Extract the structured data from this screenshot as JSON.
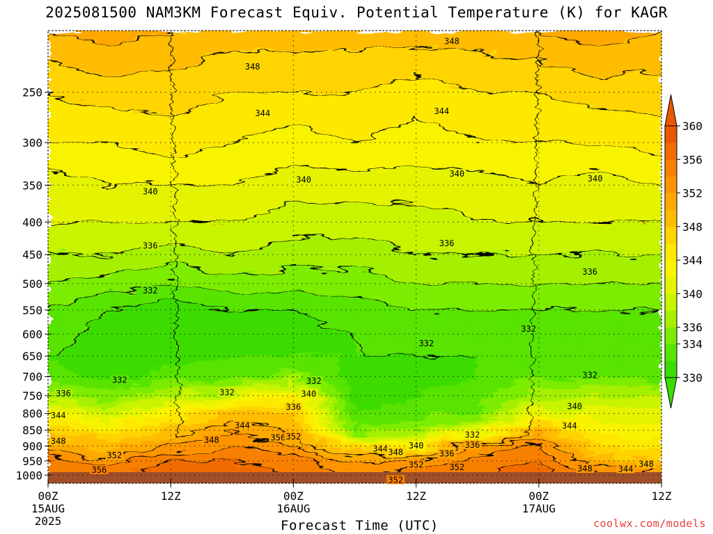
{
  "title": "2025081500 NAM3KM Forecast Equiv. Potential Temperature (K) for KAGR",
  "credit": "coolwx.com/models",
  "chart_data": {
    "type": "heatmap",
    "title": "2025081500 NAM3KM Forecast Equiv. Potential Temperature (K) for KAGR",
    "xlabel": "Forecast Time (UTC)",
    "ylabel": "",
    "x_ticks": [
      {
        "hour": 0,
        "label": "00Z",
        "sub1": "15AUG",
        "sub2": "2025"
      },
      {
        "hour": 12,
        "label": "12Z",
        "sub1": "",
        "sub2": ""
      },
      {
        "hour": 24,
        "label": "00Z",
        "sub1": "16AUG",
        "sub2": ""
      },
      {
        "hour": 36,
        "label": "12Z",
        "sub1": "",
        "sub2": ""
      },
      {
        "hour": 48,
        "label": "00Z",
        "sub1": "17AUG",
        "sub2": ""
      },
      {
        "hour": 60,
        "label": "12Z",
        "sub1": "",
        "sub2": ""
      }
    ],
    "x_range_hours": [
      0,
      60
    ],
    "y_ticks": [
      250,
      300,
      350,
      400,
      450,
      500,
      550,
      600,
      650,
      700,
      750,
      800,
      850,
      900,
      950,
      1000
    ],
    "y_range_hpa": [
      200,
      1030
    ],
    "y_scale": "log-pressure",
    "grid": true,
    "colorbar": {
      "levels": [
        330,
        332,
        334,
        336,
        338,
        340,
        342,
        344,
        346,
        348,
        350,
        352,
        354,
        356,
        358,
        360
      ],
      "labels": [
        330,
        334,
        336,
        340,
        344,
        348,
        352,
        356,
        360
      ],
      "colors": [
        "#3cdc00",
        "#58e400",
        "#7cec00",
        "#a4f000",
        "#c8f400",
        "#e4f400",
        "#f8f400",
        "#ffe800",
        "#ffd400",
        "#ffbc00",
        "#ffa800",
        "#ff9400",
        "#f88000",
        "#f06c00",
        "#e85800"
      ]
    },
    "profiles": [
      {
        "hour": 0,
        "values": {
          "1000": 356,
          "950": 355,
          "900": 351,
          "850": 347,
          "800": 344,
          "750": 337,
          "700": 333,
          "650": 332,
          "600": 333,
          "550": 334,
          "500": 336,
          "450": 338,
          "400": 340,
          "350": 341,
          "300": 344,
          "250": 346,
          "200": 350
        }
      },
      {
        "hour": 6,
        "values": {
          "1000": 356,
          "950": 353,
          "900": 349,
          "850": 345,
          "800": 339,
          "750": 335,
          "700": 331,
          "650": 331,
          "600": 331,
          "550": 332,
          "500": 335,
          "450": 338,
          "400": 340,
          "350": 342,
          "300": 344,
          "250": 347,
          "200": 351
        }
      },
      {
        "hour": 12,
        "values": {
          "1000": 358,
          "950": 356,
          "900": 352,
          "850": 348,
          "800": 344,
          "750": 338,
          "700": 333,
          "650": 331,
          "600": 330,
          "550": 331,
          "500": 334,
          "450": 337,
          "400": 340,
          "350": 342,
          "300": 345,
          "250": 347,
          "200": 350
        }
      },
      {
        "hour": 18,
        "values": {
          "1000": 357,
          "950": 356,
          "900": 354,
          "850": 352,
          "800": 348,
          "750": 340,
          "700": 333,
          "650": 332,
          "600": 331,
          "550": 332,
          "500": 335,
          "450": 338,
          "400": 340,
          "350": 342,
          "300": 344,
          "250": 346,
          "200": 349
        }
      },
      {
        "hour": 24,
        "values": {
          "1000": 356,
          "950": 355,
          "900": 352,
          "850": 350,
          "800": 348,
          "750": 344,
          "700": 335,
          "650": 332,
          "600": 331,
          "550": 332,
          "500": 335,
          "450": 337,
          "400": 339,
          "350": 341,
          "300": 343,
          "250": 346,
          "200": 349
        }
      },
      {
        "hour": 30,
        "values": {
          "1000": 354,
          "950": 352,
          "900": 346,
          "850": 334,
          "800": 332,
          "750": 331,
          "700": 331,
          "650": 332,
          "600": 332,
          "550": 333,
          "500": 335,
          "450": 337,
          "400": 339,
          "350": 341,
          "300": 344,
          "250": 346,
          "200": 349
        }
      },
      {
        "hour": 36,
        "values": {
          "1000": 355,
          "950": 352,
          "900": 344,
          "850": 336,
          "800": 333,
          "750": 332,
          "700": 331,
          "650": 332,
          "600": 333,
          "550": 334,
          "500": 336,
          "450": 338,
          "400": 339,
          "350": 341,
          "300": 343,
          "250": 345,
          "200": 349
        }
      },
      {
        "hour": 42,
        "values": {
          "1000": 356,
          "950": 355,
          "900": 353,
          "850": 340,
          "800": 334,
          "750": 333,
          "700": 332,
          "650": 332,
          "600": 333,
          "550": 334,
          "500": 336,
          "450": 338,
          "400": 340,
          "350": 341,
          "300": 344,
          "250": 346,
          "200": 349
        }
      },
      {
        "hour": 48,
        "values": {
          "1000": 357,
          "950": 356,
          "900": 354,
          "850": 350,
          "800": 342,
          "750": 337,
          "700": 334,
          "650": 332,
          "600": 333,
          "550": 334,
          "500": 336,
          "450": 338,
          "400": 340,
          "350": 342,
          "300": 344,
          "250": 346,
          "200": 350
        }
      },
      {
        "hour": 54,
        "values": {
          "1000": 355,
          "950": 350,
          "900": 346,
          "850": 343,
          "800": 341,
          "750": 338,
          "700": 334,
          "650": 333,
          "600": 333,
          "550": 334,
          "500": 336,
          "450": 338,
          "400": 340,
          "350": 341,
          "300": 344,
          "250": 347,
          "200": 351
        }
      },
      {
        "hour": 60,
        "values": {
          "1000": 352,
          "950": 348,
          "900": 345,
          "850": 343,
          "800": 341,
          "750": 338,
          "700": 333,
          "650": 332,
          "600": 333,
          "550": 334,
          "500": 336,
          "450": 338,
          "400": 340,
          "350": 342,
          "300": 345,
          "250": 347,
          "200": 350
        }
      }
    ],
    "contour_labels": [
      {
        "text": "348",
        "hour": 20,
        "hpa": 228
      },
      {
        "text": "348",
        "hour": 39.5,
        "hpa": 208
      },
      {
        "text": "344",
        "hour": 21,
        "hpa": 270
      },
      {
        "text": "344",
        "hour": 38.5,
        "hpa": 268
      },
      {
        "text": "340",
        "hour": 10,
        "hpa": 358
      },
      {
        "text": "340",
        "hour": 25,
        "hpa": 343
      },
      {
        "text": "340",
        "hour": 40,
        "hpa": 336
      },
      {
        "text": "340",
        "hour": 53.5,
        "hpa": 342
      },
      {
        "text": "336",
        "hour": 10,
        "hpa": 436
      },
      {
        "text": "336",
        "hour": 39,
        "hpa": 432
      },
      {
        "text": "336",
        "hour": 53,
        "hpa": 479
      },
      {
        "text": "332",
        "hour": 10,
        "hpa": 513
      },
      {
        "text": "332",
        "hour": 37,
        "hpa": 621
      },
      {
        "text": "332",
        "hour": 47,
        "hpa": 589
      },
      {
        "text": "332",
        "hour": 53,
        "hpa": 696
      },
      {
        "text": "332",
        "hour": 7,
        "hpa": 709
      },
      {
        "text": "332",
        "hour": 17.5,
        "hpa": 742
      },
      {
        "text": "332",
        "hour": 26,
        "hpa": 711
      },
      {
        "text": "336",
        "hour": 1.5,
        "hpa": 744
      },
      {
        "text": "344",
        "hour": 1,
        "hpa": 806
      },
      {
        "text": "348",
        "hour": 1,
        "hpa": 885
      },
      {
        "text": "340",
        "hour": 25.5,
        "hpa": 745
      },
      {
        "text": "336",
        "hour": 24,
        "hpa": 782
      },
      {
        "text": "344",
        "hour": 19,
        "hpa": 836
      },
      {
        "text": "356",
        "hour": 22.5,
        "hpa": 873
      },
      {
        "text": "352",
        "hour": 24,
        "hpa": 870
      },
      {
        "text": "348",
        "hour": 16,
        "hpa": 881
      },
      {
        "text": "352",
        "hour": 6.5,
        "hpa": 931
      },
      {
        "text": "356",
        "hour": 5,
        "hpa": 982
      },
      {
        "text": "344",
        "hour": 32.5,
        "hpa": 909
      },
      {
        "text": "348",
        "hour": 34,
        "hpa": 921
      },
      {
        "text": "340",
        "hour": 36,
        "hpa": 899
      },
      {
        "text": "336",
        "hour": 39,
        "hpa": 926
      },
      {
        "text": "332",
        "hour": 41.5,
        "hpa": 865
      },
      {
        "text": "336",
        "hour": 41.5,
        "hpa": 897
      },
      {
        "text": "352",
        "hour": 36,
        "hpa": 963
      },
      {
        "text": "352",
        "hour": 40,
        "hpa": 972
      },
      {
        "text": "352",
        "hour": 34,
        "hpa": 1018
      },
      {
        "text": "340",
        "hour": 51.5,
        "hpa": 780
      },
      {
        "text": "344",
        "hour": 51,
        "hpa": 837
      },
      {
        "text": "348",
        "hour": 52.5,
        "hpa": 977
      },
      {
        "text": "344",
        "hour": 56.5,
        "hpa": 978
      },
      {
        "text": "348",
        "hour": 58.5,
        "hpa": 961
      }
    ]
  }
}
